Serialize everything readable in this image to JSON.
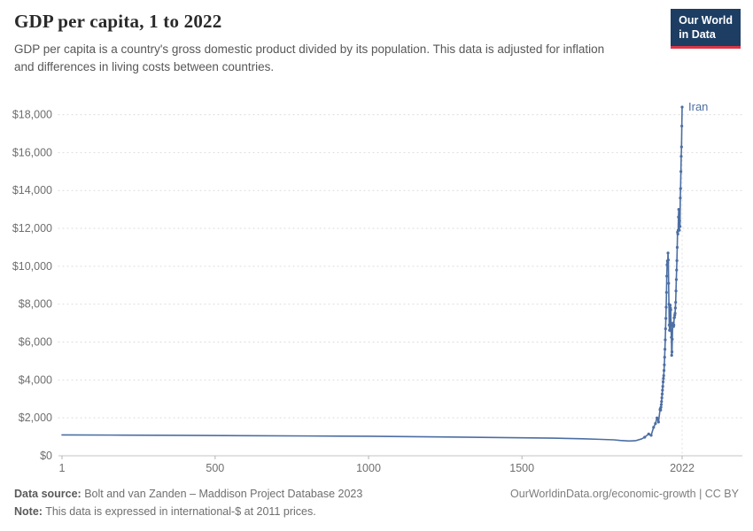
{
  "header": {
    "title": "GDP per capita, 1 to 2022",
    "subtitle": "GDP per capita is a country's gross domestic product divided by its population. This data is adjusted for inflation and differences in living costs between countries.",
    "logo": {
      "line1": "Our World",
      "line2": "in Data",
      "bg_color": "#1d3d63",
      "accent_color": "#dc3545"
    }
  },
  "chart_data": {
    "type": "line",
    "title": "GDP per capita, 1 to 2022",
    "xlabel": "",
    "ylabel": "",
    "xlim": [
      1,
      2022
    ],
    "ylim": [
      0,
      18400
    ],
    "xticks": [
      1,
      500,
      1000,
      1500,
      2022
    ],
    "yticks": [
      0,
      2000,
      4000,
      6000,
      8000,
      10000,
      12000,
      14000,
      16000,
      18000
    ],
    "ytick_prefix": "$",
    "grid": "dotted-horizontal",
    "legend_position": "end-of-line-label",
    "series": [
      {
        "name": "Iran",
        "color": "#4c6ea3",
        "points": [
          [
            1,
            1100
          ],
          [
            200,
            1090
          ],
          [
            400,
            1075
          ],
          [
            600,
            1060
          ],
          [
            800,
            1045
          ],
          [
            1000,
            1030
          ],
          [
            1150,
            1005
          ],
          [
            1300,
            985
          ],
          [
            1500,
            950
          ],
          [
            1600,
            930
          ],
          [
            1700,
            895
          ],
          [
            1750,
            870
          ],
          [
            1800,
            840
          ],
          [
            1820,
            810
          ],
          [
            1850,
            780
          ],
          [
            1870,
            795
          ],
          [
            1890,
            890
          ],
          [
            1900,
            980
          ],
          [
            1913,
            1150
          ],
          [
            1921,
            1080
          ],
          [
            1929,
            1500
          ],
          [
            1935,
            1700
          ],
          [
            1940,
            2000
          ],
          [
            1945,
            1780
          ],
          [
            1950,
            2430
          ],
          [
            1951,
            2490
          ],
          [
            1952,
            2410
          ],
          [
            1953,
            2560
          ],
          [
            1954,
            2700
          ],
          [
            1955,
            2860
          ],
          [
            1956,
            3060
          ],
          [
            1957,
            3260
          ],
          [
            1958,
            3460
          ],
          [
            1959,
            3660
          ],
          [
            1960,
            3900
          ],
          [
            1961,
            4080
          ],
          [
            1962,
            4230
          ],
          [
            1963,
            4500
          ],
          [
            1964,
            4800
          ],
          [
            1965,
            5200
          ],
          [
            1966,
            5620
          ],
          [
            1967,
            6120
          ],
          [
            1968,
            6700
          ],
          [
            1969,
            7250
          ],
          [
            1970,
            7840
          ],
          [
            1971,
            8620
          ],
          [
            1972,
            9480
          ],
          [
            1973,
            10080
          ],
          [
            1974,
            10280
          ],
          [
            1975,
            10180
          ],
          [
            1976,
            10700
          ],
          [
            1977,
            10330
          ],
          [
            1978,
            9100
          ],
          [
            1979,
            8000
          ],
          [
            1980,
            6900
          ],
          [
            1981,
            6620
          ],
          [
            1982,
            7350
          ],
          [
            1983,
            7950
          ],
          [
            1984,
            7800
          ],
          [
            1985,
            7700
          ],
          [
            1986,
            6600
          ],
          [
            1987,
            6250
          ],
          [
            1988,
            5300
          ],
          [
            1989,
            5480
          ],
          [
            1990,
            6150
          ],
          [
            1991,
            6880
          ],
          [
            1992,
            7000
          ],
          [
            1993,
            6940
          ],
          [
            1994,
            6820
          ],
          [
            1995,
            6900
          ],
          [
            1996,
            7280
          ],
          [
            1997,
            7300
          ],
          [
            1998,
            7420
          ],
          [
            1999,
            7520
          ],
          [
            2000,
            7800
          ],
          [
            2001,
            8100
          ],
          [
            2002,
            8700
          ],
          [
            2003,
            9300
          ],
          [
            2004,
            9800
          ],
          [
            2005,
            10300
          ],
          [
            2006,
            11000
          ],
          [
            2007,
            11800
          ],
          [
            2008,
            11700
          ],
          [
            2009,
            11900
          ],
          [
            2010,
            12600
          ],
          [
            2011,
            13000
          ],
          [
            2012,
            12200
          ],
          [
            2013,
            11900
          ],
          [
            2014,
            12400
          ],
          [
            2015,
            12100
          ],
          [
            2016,
            13600
          ],
          [
            2017,
            14100
          ],
          [
            2018,
            15000
          ],
          [
            2019,
            15800
          ],
          [
            2020,
            16300
          ],
          [
            2021,
            17400
          ],
          [
            2022,
            18400
          ]
        ]
      }
    ]
  },
  "footer": {
    "source_label": "Data source:",
    "source_text": " Bolt and van Zanden – Maddison Project Database 2023",
    "note_label": "Note:",
    "note_text": " This data is expressed in international-$ at 2011 prices.",
    "right_text": "OurWorldinData.org/economic-growth | CC BY"
  }
}
